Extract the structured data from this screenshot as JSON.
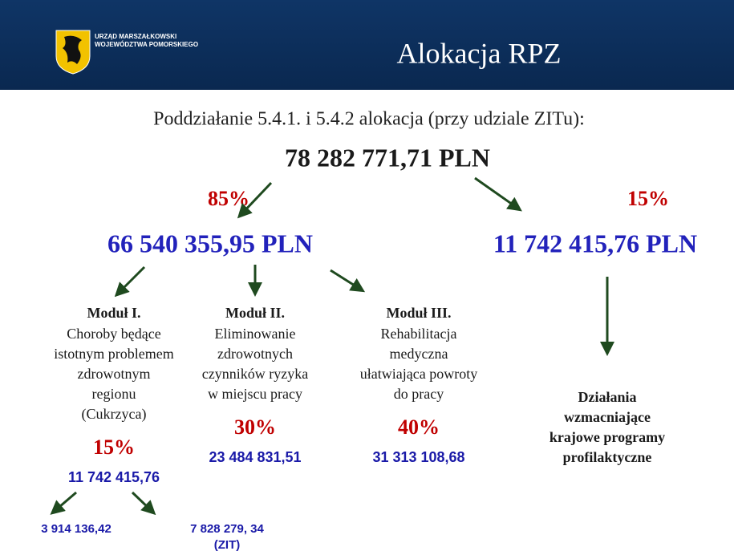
{
  "header": {
    "org_lines": [
      "URZĄD MARSZAŁKOWSKI",
      "WOJEWÓDZTWA POMORSKIEGO"
    ],
    "title": "Alokacja RPZ"
  },
  "subtitle": "Poddziałanie 5.4.1. i 5.4.2 alokacja (przy udziale ZITu):",
  "total": "78 282 771,71 PLN",
  "left": {
    "percent": "85%",
    "amount": "66 540 355,95 PLN",
    "modules": [
      {
        "title": "Moduł I.",
        "lines": [
          "Choroby będące",
          "istotnym problemem",
          "zdrowotnym",
          "regionu",
          "(Cukrzyca)"
        ],
        "percent": "15%",
        "amount": "11 742 415,76",
        "split": [
          {
            "lines": [
              "3 914 136,42"
            ]
          },
          {
            "lines": [
              "7 828 279, 34",
              "(ZIT)"
            ]
          }
        ]
      },
      {
        "title": "Moduł II.",
        "lines": [
          "Eliminowanie",
          "zdrowotnych",
          "czynników ryzyka",
          "w miejscu pracy"
        ],
        "percent": "30%",
        "amount": "23 484 831,51"
      },
      {
        "title": "Moduł III.",
        "lines": [
          "Rehabilitacja",
          "medyczna",
          "ułatwiająca powroty",
          "do pracy"
        ],
        "percent": "40%",
        "amount": "31 313 108,68"
      }
    ]
  },
  "right": {
    "percent": "15%",
    "amount": "11 742 415,76 PLN",
    "lines": [
      "Działania",
      "wzmacniające",
      "krajowe programy",
      "profilaktyczne"
    ]
  }
}
